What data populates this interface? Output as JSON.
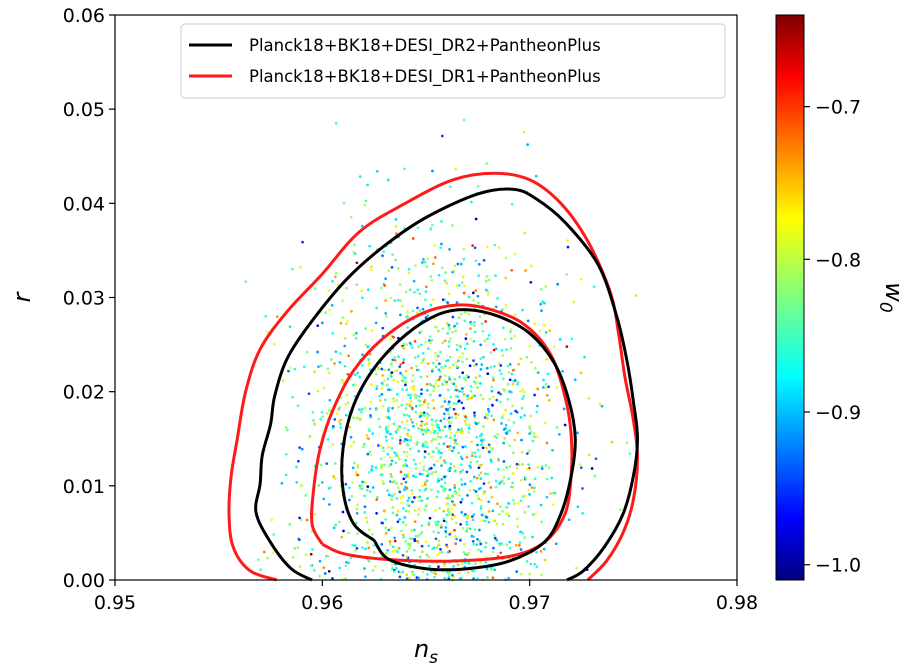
{
  "chart_data": {
    "type": "scatter",
    "title": "",
    "xlabel": "n_s",
    "ylabel": "r",
    "xlim": [
      0.95,
      0.98
    ],
    "ylim": [
      0.0,
      0.06
    ],
    "xticks": [
      "0.95",
      "0.96",
      "0.97",
      "0.98"
    ],
    "yticks": [
      "0.00",
      "0.01",
      "0.02",
      "0.03",
      "0.04",
      "0.05",
      "0.06"
    ],
    "grid": false,
    "legend_position": "top-right",
    "colorbar": {
      "label": "w_0",
      "colormap": "jet",
      "range": [
        -1.01,
        -0.64
      ],
      "ticks": [
        {
          "value": -0.7,
          "label": "−0.7"
        },
        {
          "value": -0.8,
          "label": "−0.8"
        },
        {
          "value": -0.9,
          "label": "−0.9"
        },
        {
          "value": -1.0,
          "label": "−1.0"
        }
      ]
    },
    "series": [
      {
        "name": "Planck18+BK18+DESI_DR2+PantheonPlus",
        "color": "#000000",
        "contours": {
          "outer_95": [
            [
              0.9595,
              0.0
            ],
            [
              0.9585,
              0.0012
            ],
            [
              0.9575,
              0.004
            ],
            [
              0.9568,
              0.0072
            ],
            [
              0.957,
              0.0102
            ],
            [
              0.9571,
              0.0132
            ],
            [
              0.9575,
              0.0165
            ],
            [
              0.9577,
              0.0195
            ],
            [
              0.9583,
              0.0235
            ],
            [
              0.9595,
              0.0275
            ],
            [
              0.9612,
              0.032
            ],
            [
              0.963,
              0.0355
            ],
            [
              0.965,
              0.0385
            ],
            [
              0.9675,
              0.041
            ],
            [
              0.9692,
              0.0415
            ],
            [
              0.9703,
              0.0405
            ],
            [
              0.9717,
              0.038
            ],
            [
              0.9733,
              0.0335
            ],
            [
              0.9742,
              0.028
            ],
            [
              0.9747,
              0.0232
            ],
            [
              0.975,
              0.019
            ],
            [
              0.9752,
              0.015
            ],
            [
              0.975,
              0.011
            ],
            [
              0.9745,
              0.007
            ],
            [
              0.9736,
              0.0035
            ],
            [
              0.9726,
              0.001
            ],
            [
              0.9718,
              0.0
            ]
          ],
          "inner_68": [
            [
              0.9625,
              0.0042
            ],
            [
              0.9615,
              0.006
            ],
            [
              0.961,
              0.0095
            ],
            [
              0.961,
              0.014
            ],
            [
              0.9615,
              0.0185
            ],
            [
              0.9625,
              0.0225
            ],
            [
              0.964,
              0.026
            ],
            [
              0.9656,
              0.0282
            ],
            [
              0.967,
              0.0287
            ],
            [
              0.9685,
              0.028
            ],
            [
              0.97,
              0.0262
            ],
            [
              0.9712,
              0.023
            ],
            [
              0.9719,
              0.019
            ],
            [
              0.9722,
              0.015
            ],
            [
              0.972,
              0.011
            ],
            [
              0.9715,
              0.007
            ],
            [
              0.9707,
              0.004
            ],
            [
              0.969,
              0.002
            ],
            [
              0.967,
              0.0012
            ],
            [
              0.965,
              0.0012
            ],
            [
              0.9632,
              0.0022
            ],
            [
              0.9625,
              0.0042
            ]
          ]
        }
      },
      {
        "name": "Planck18+BK18+DESI_DR1+PantheonPlus",
        "color": "#ff1a1a",
        "contours": {
          "outer_95": [
            [
              0.9578,
              0.0
            ],
            [
              0.9565,
              0.001
            ],
            [
              0.9557,
              0.0035
            ],
            [
              0.9555,
              0.007
            ],
            [
              0.9556,
              0.011
            ],
            [
              0.9559,
              0.015
            ],
            [
              0.9563,
              0.02
            ],
            [
              0.957,
              0.0245
            ],
            [
              0.9583,
              0.0285
            ],
            [
              0.96,
              0.0325
            ],
            [
              0.9618,
              0.037
            ],
            [
              0.964,
              0.04
            ],
            [
              0.9663,
              0.0425
            ],
            [
              0.9683,
              0.0432
            ],
            [
              0.97,
              0.0425
            ],
            [
              0.9715,
              0.04
            ],
            [
              0.9728,
              0.036
            ],
            [
              0.9739,
              0.0305
            ],
            [
              0.9743,
              0.026
            ],
            [
              0.9746,
              0.0215
            ],
            [
              0.975,
              0.017
            ],
            [
              0.9752,
              0.013
            ],
            [
              0.975,
              0.0085
            ],
            [
              0.9745,
              0.005
            ],
            [
              0.9737,
              0.002
            ],
            [
              0.9728,
              0.0
            ]
          ],
          "inner_68": [
            [
              0.96,
              0.0038
            ],
            [
              0.9595,
              0.006
            ],
            [
              0.9596,
              0.01
            ],
            [
              0.9599,
              0.014
            ],
            [
              0.9605,
              0.018
            ],
            [
              0.9615,
              0.0222
            ],
            [
              0.963,
              0.0258
            ],
            [
              0.9648,
              0.0283
            ],
            [
              0.9665,
              0.0292
            ],
            [
              0.968,
              0.0288
            ],
            [
              0.9697,
              0.0272
            ],
            [
              0.971,
              0.024
            ],
            [
              0.9717,
              0.0195
            ],
            [
              0.972,
              0.0155
            ],
            [
              0.972,
              0.011
            ],
            [
              0.9717,
              0.007
            ],
            [
              0.9707,
              0.004
            ],
            [
              0.969,
              0.0025
            ],
            [
              0.966,
              0.002
            ],
            [
              0.963,
              0.0022
            ],
            [
              0.961,
              0.0028
            ],
            [
              0.96,
              0.0038
            ]
          ]
        }
      }
    ],
    "samples": {
      "description_source": "MCMC samples coloured by w_0 (approximate reconstruction)",
      "count": 1800,
      "center": [
        0.9655,
        0.0155
      ],
      "spread": [
        0.0032,
        0.011
      ]
    }
  }
}
